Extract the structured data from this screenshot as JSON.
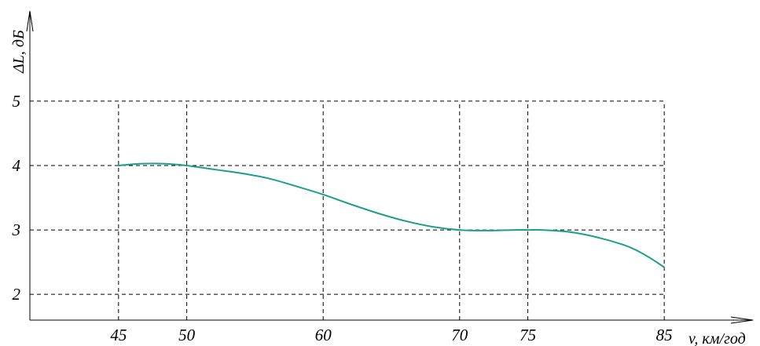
{
  "chart_data": {
    "type": "line",
    "title": "",
    "xlabel": "v, км/год",
    "ylabel": "ΔL, дБ",
    "x_ticks": [
      45,
      50,
      60,
      70,
      75,
      85
    ],
    "x_tick_labels": [
      "45",
      "50",
      "60",
      "70",
      "75",
      "85"
    ],
    "y_ticks": [
      2,
      3,
      4,
      5
    ],
    "y_tick_labels": [
      "2",
      "3",
      "4",
      "5"
    ],
    "xlim": [
      38.5,
      91.5
    ],
    "ylim": [
      1.6,
      6.4
    ],
    "grid": true,
    "legend": "none",
    "colors": {
      "series": "#1a9e90",
      "axis": "#000000",
      "grid": "#000000"
    },
    "series": [
      {
        "x": [
          45,
          46,
          47,
          48,
          49,
          50,
          52,
          54,
          56,
          58,
          60,
          62,
          64,
          66,
          68,
          70,
          72,
          74,
          75,
          76,
          78,
          80,
          82,
          83,
          84,
          85
        ],
        "y": [
          4.0,
          4.02,
          4.03,
          4.03,
          4.02,
          4.0,
          3.94,
          3.88,
          3.8,
          3.68,
          3.55,
          3.4,
          3.26,
          3.14,
          3.05,
          3.0,
          2.99,
          3.0,
          3.0,
          3.0,
          2.97,
          2.89,
          2.77,
          2.68,
          2.56,
          2.42
        ]
      }
    ]
  }
}
